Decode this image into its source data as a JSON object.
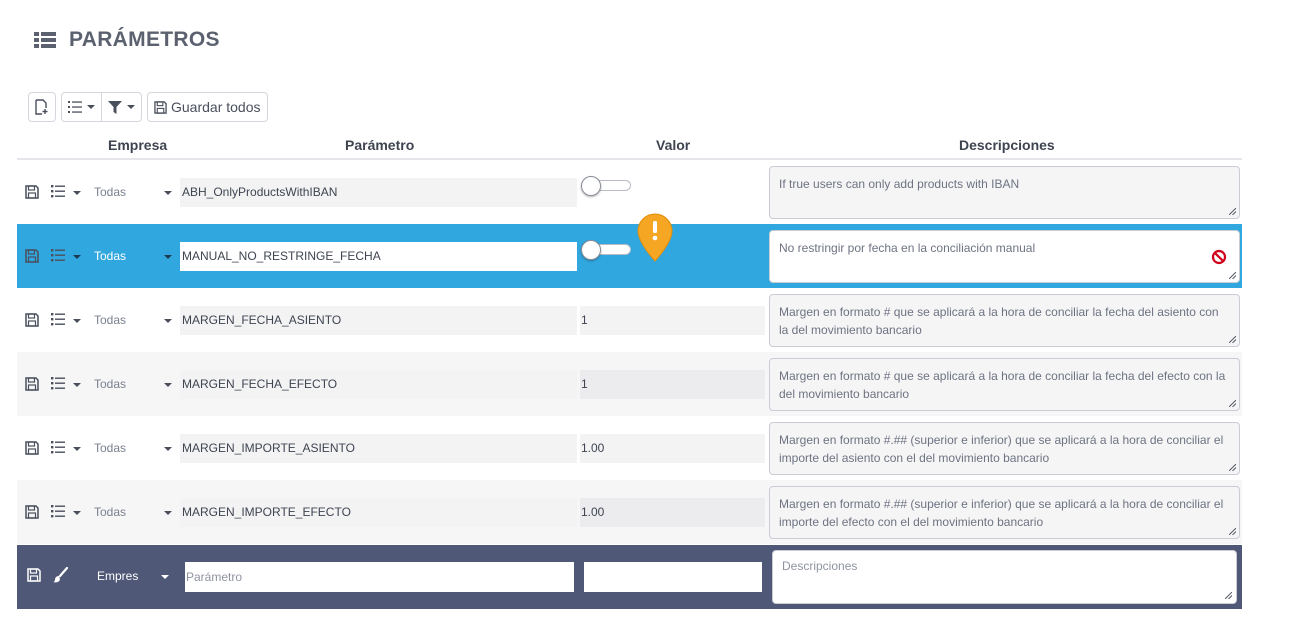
{
  "page": {
    "title": "PARÁMETROS",
    "title_icon": "list-icon"
  },
  "toolbar": {
    "new_icon": "new-document-icon",
    "columns_icon": "list-icon",
    "filter_icon": "filter-icon",
    "save_all_label": "Guardar todos",
    "save_all_icon": "save-icon"
  },
  "columns": {
    "empresa": "Empresa",
    "parametro": "Parámetro",
    "valor": "Valor",
    "descripciones": "Descripciones"
  },
  "rows": [
    {
      "empresa": "Todas",
      "parametro": "ABH_OnlyProductsWithIBAN",
      "valor_type": "toggle",
      "valor": "false",
      "descripcion": "If true users can only add products with IBAN"
    },
    {
      "empresa": "Todas",
      "parametro": "MANUAL_NO_RESTRINGE_FECHA",
      "valor_type": "toggle",
      "valor": "false",
      "descripcion": "No restringir por fecha en la conciliación manual",
      "selected": true
    },
    {
      "empresa": "Todas",
      "parametro": "MARGEN_FECHA_ASIENTO",
      "valor_type": "text",
      "valor": "1",
      "descripcion": "Margen en formato # que se aplicará a la hora de conciliar la fecha del asiento con la del movimiento bancario"
    },
    {
      "empresa": "Todas",
      "parametro": "MARGEN_FECHA_EFECTO",
      "valor_type": "text",
      "valor": "1",
      "descripcion": "Margen en formato # que se aplicará a la hora de conciliar la fecha del efecto con la del movimiento bancario"
    },
    {
      "empresa": "Todas",
      "parametro": "MARGEN_IMPORTE_ASIENTO",
      "valor_type": "text",
      "valor": "1.00",
      "descripcion": "Margen en formato #.## (superior e inferior) que se aplicará a la hora de conciliar el importe del asiento con el del movimiento bancario"
    },
    {
      "empresa": "Todas",
      "parametro": "MARGEN_IMPORTE_EFECTO",
      "valor_type": "text",
      "valor": "1.00",
      "descripcion": "Margen en formato #.## (superior e inferior) que se aplicará a la hora de conciliar el importe del efecto con el del movimiento bancario"
    }
  ],
  "new_row": {
    "empresa_label": "Empres",
    "parametro_placeholder": "Parámetro",
    "valor_value": "",
    "descripcion_placeholder": "Descripciones"
  },
  "colors": {
    "selected_row": "#31a7df",
    "new_row": "#505877",
    "warning": "#f5a623",
    "block": "#d0021b"
  }
}
